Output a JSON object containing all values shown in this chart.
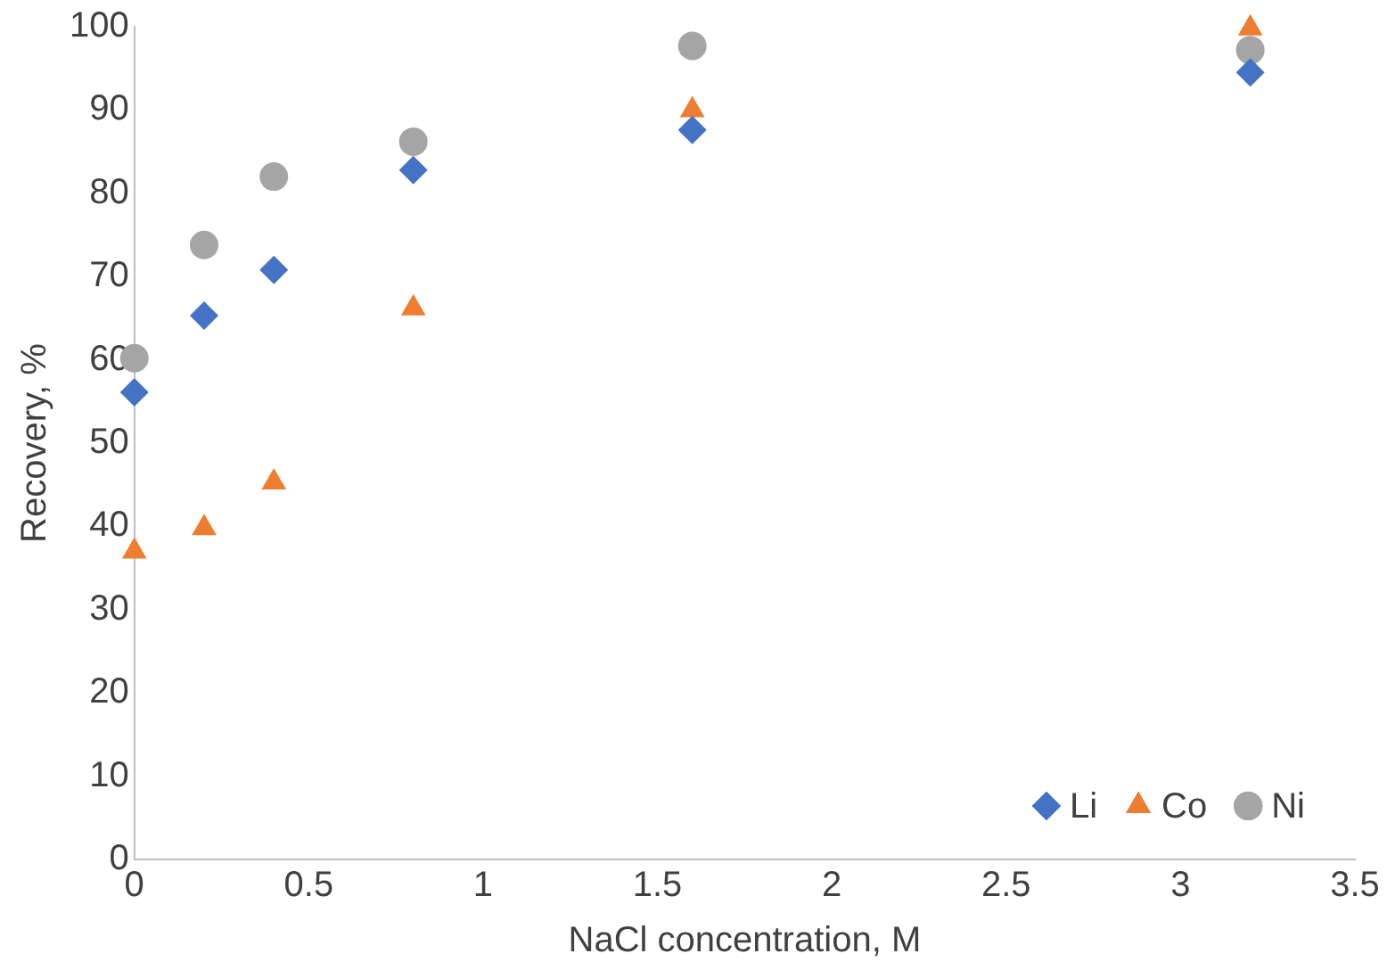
{
  "chart_data": {
    "type": "scatter",
    "xlabel": "NaCl concentration, M",
    "ylabel": "Recovery, %",
    "x": [
      0,
      0.2,
      0.4,
      0.8,
      1.6,
      3.2
    ],
    "series": [
      {
        "name": "Li",
        "color": "#4472c4",
        "marker": "diamond",
        "values": [
          56.1,
          65.3,
          70.8,
          82.8,
          87.6,
          94.5
        ]
      },
      {
        "name": "Co",
        "color": "#ed7d31",
        "marker": "triangle",
        "values": [
          37,
          39.8,
          45.3,
          66.2,
          90,
          99.8
        ]
      },
      {
        "name": "Ni",
        "color": "#a5a5a5",
        "marker": "circle",
        "values": [
          60.2,
          73.8,
          82,
          86.2,
          97.7,
          97.2
        ]
      }
    ],
    "xlim": [
      0,
      3.5
    ],
    "xticks": [
      0,
      0.5,
      1,
      1.5,
      2,
      2.5,
      3,
      3.5
    ],
    "ylim": [
      0,
      100
    ],
    "yticks": [
      0,
      10,
      20,
      30,
      40,
      50,
      60,
      70,
      80,
      90,
      100
    ],
    "grid": false,
    "legend": "bottom right"
  }
}
